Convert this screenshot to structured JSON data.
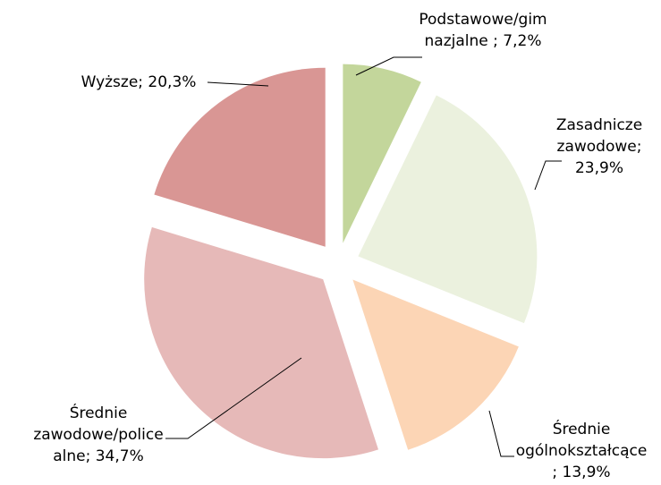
{
  "chart_data": {
    "type": "pie",
    "values": [
      7.2,
      23.9,
      13.9,
      34.7,
      20.3
    ],
    "value_labels": [
      [
        "Podstawowe/gim",
        "nazjalne ; 7,2%"
      ],
      [
        "Zasadnicze",
        "zawodowe;",
        "23,9%"
      ],
      [
        "Średnie",
        "ogólnokształcące",
        "; 13,9%"
      ],
      [
        "Średnie",
        "zawodowe/police",
        "alne; 34,7%"
      ],
      [
        "Wyższe; 20,3%"
      ]
    ],
    "colors": [
      "#c3d69b",
      "#ebf1de",
      "#fcd5b5",
      "#e6b9b8",
      "#d99694"
    ],
    "start_angle": 0,
    "direction": "clockwise",
    "exploded": true
  }
}
